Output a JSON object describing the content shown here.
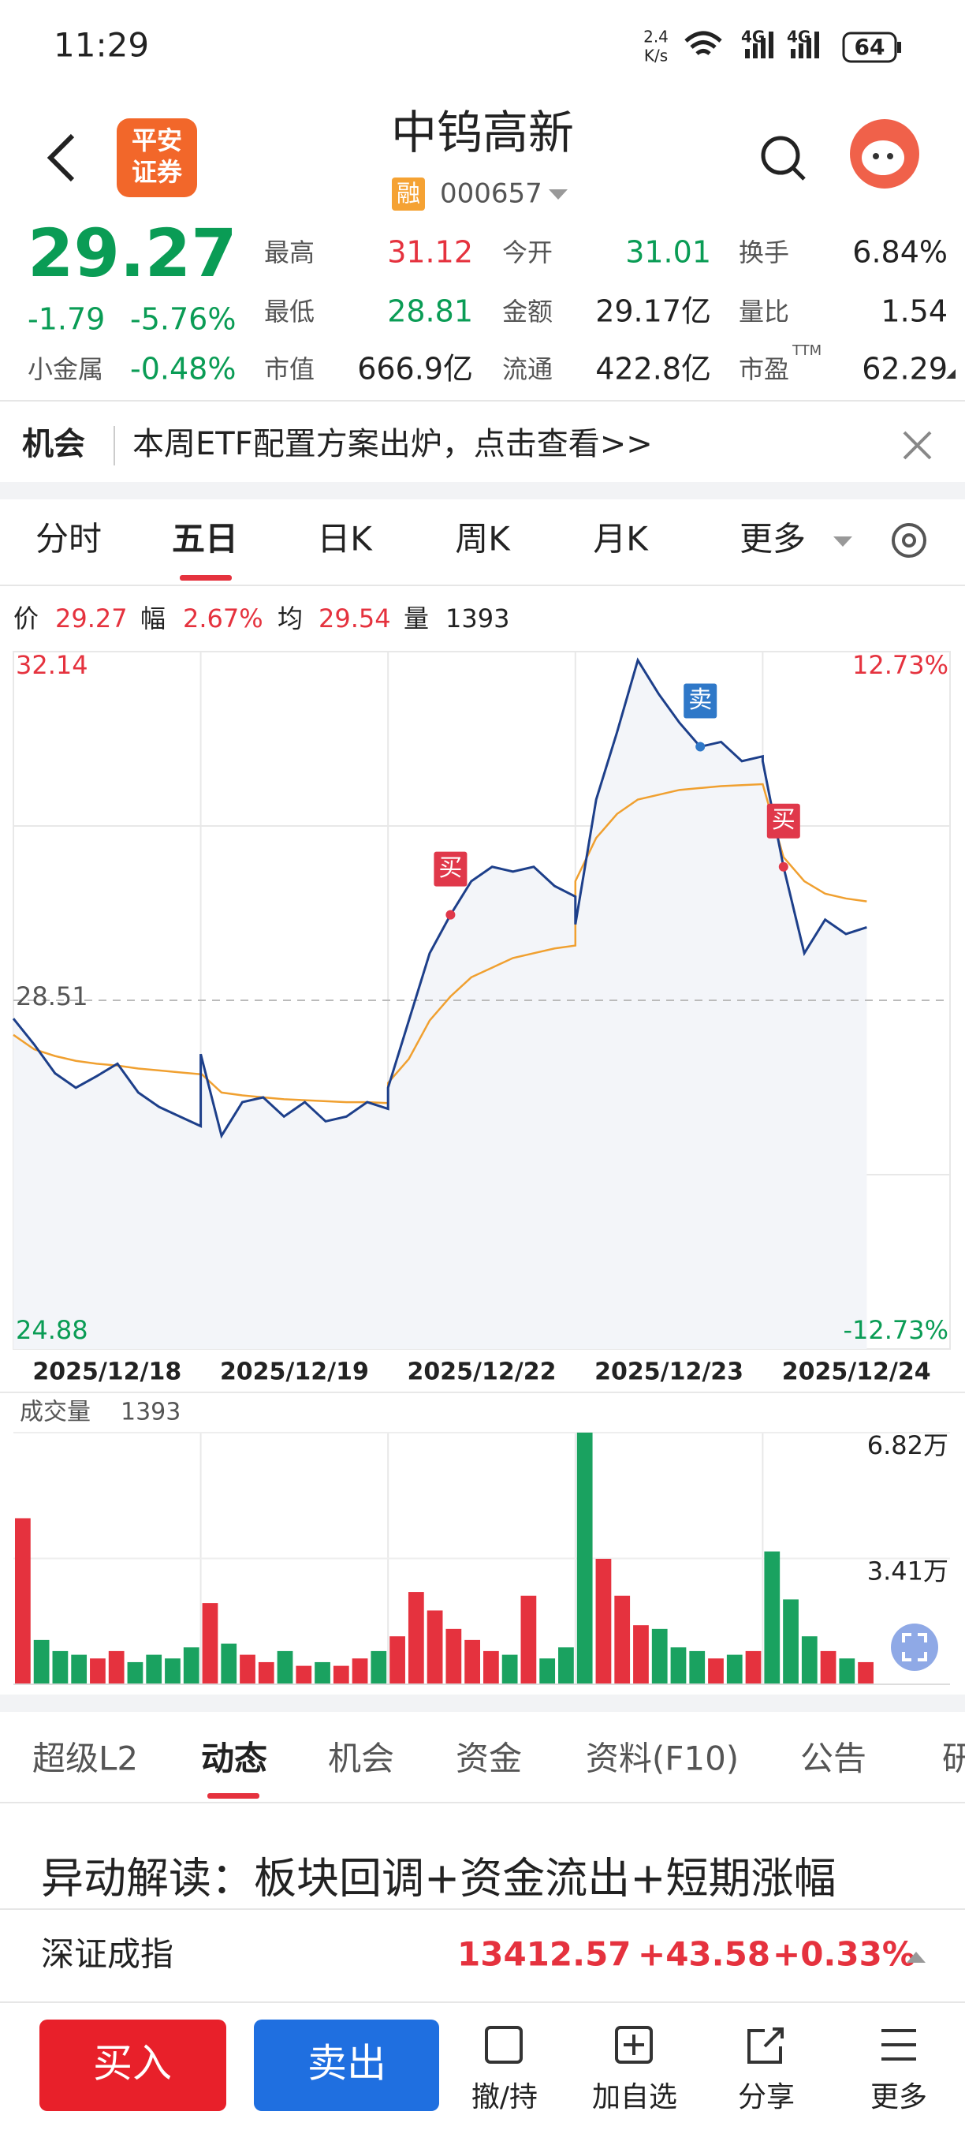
{
  "status": {
    "time": "11:29",
    "speed": "2.4",
    "speed_unit": "K/s",
    "net1": "4G",
    "net2": "4G",
    "battery": "64"
  },
  "header": {
    "broker_top": "平安",
    "broker_bottom": "证券",
    "title": "中钨高新",
    "badge": "融",
    "code": "000657"
  },
  "quote": {
    "price": "29.27",
    "change": "-1.79",
    "change_pct": "-5.76%",
    "sector": "小金属",
    "sector_pct": "-0.48%",
    "stats": [
      {
        "label": "最高",
        "value": "31.12"
      },
      {
        "label": "今开",
        "value": "31.01"
      },
      {
        "label": "换手",
        "value": "6.84%"
      },
      {
        "label": "最低",
        "value": "28.81"
      },
      {
        "label": "金额",
        "value": "29.17亿"
      },
      {
        "label": "量比",
        "value": "1.54"
      },
      {
        "label": "市值",
        "value": "666.9亿"
      },
      {
        "label": "流通",
        "value": "422.8亿"
      },
      {
        "label": "市盈",
        "value": "62.29"
      }
    ],
    "pe_note": "TTM"
  },
  "banner": {
    "tag": "机会",
    "text": "本周ETF配置方案出炉，点击查看>>"
  },
  "chart_tabs": [
    "分时",
    "五日",
    "日K",
    "周K",
    "月K",
    "更多"
  ],
  "info": {
    "price_label": "价",
    "price": "29.27",
    "range_label": "幅",
    "range": "2.67%",
    "avg_label": "均",
    "avg": "29.54",
    "vol_label": "量",
    "vol": "1393"
  },
  "chart": {
    "price_max": 32.14,
    "price_mid": 28.51,
    "price_min": 24.88,
    "pct_max": "12.73%",
    "pct_min": "-12.73%",
    "vol_title": "成交量",
    "vol_now": "1393",
    "vol_ticks": [
      {
        "value": 6.82,
        "label": "6.82万"
      },
      {
        "value": 3.41,
        "label": "3.41万"
      }
    ],
    "days": [
      {
        "date": "2025/12/18",
        "price": [
          28.32,
          28.05,
          27.75,
          27.6,
          27.72,
          27.85,
          27.55,
          27.4,
          27.3,
          27.2
        ],
        "avg": [
          28.15,
          28.0,
          27.93,
          27.88,
          27.85,
          27.83,
          27.8,
          27.78,
          27.76,
          27.74
        ],
        "volume": [
          4.5,
          1.2,
          0.9,
          0.8,
          0.7,
          0.9,
          0.6,
          0.8,
          0.7,
          1.0
        ],
        "marks": []
      },
      {
        "date": "2025/12/19",
        "price": [
          27.95,
          27.1,
          27.45,
          27.5,
          27.3,
          27.45,
          27.25,
          27.3,
          27.45,
          27.38
        ],
        "avg": [
          27.75,
          27.55,
          27.52,
          27.5,
          27.48,
          27.47,
          27.46,
          27.45,
          27.45,
          27.44
        ],
        "volume": [
          2.2,
          1.1,
          0.8,
          0.6,
          0.9,
          0.5,
          0.6,
          0.5,
          0.7,
          0.9
        ],
        "marks": []
      },
      {
        "date": "2025/12/22",
        "price": [
          27.6,
          28.3,
          29.0,
          29.4,
          29.75,
          29.9,
          29.85,
          29.9,
          29.7,
          29.59
        ],
        "avg": [
          27.65,
          27.9,
          28.3,
          28.55,
          28.75,
          28.85,
          28.95,
          29.0,
          29.05,
          29.08
        ],
        "volume": [
          1.3,
          2.5,
          2.0,
          1.5,
          1.2,
          0.9,
          0.8,
          2.4,
          0.7,
          1.0
        ],
        "marks": [
          {
            "label": "买",
            "at": 3
          }
        ]
      },
      {
        "date": "2025/12/23",
        "price": [
          29.3,
          30.6,
          31.3,
          32.05,
          31.7,
          31.4,
          31.15,
          31.2,
          31.0,
          31.05
        ],
        "avg": [
          29.75,
          30.2,
          30.45,
          30.6,
          30.65,
          30.7,
          30.72,
          30.74,
          30.75,
          30.76
        ],
        "volume": [
          6.82,
          3.4,
          2.4,
          1.6,
          1.5,
          1.0,
          0.9,
          0.7,
          0.8,
          0.9
        ],
        "marks": [
          {
            "label": "卖",
            "at": 6
          }
        ]
      },
      {
        "date": "2025/12/24",
        "price": [
          31.0,
          29.9,
          29.0,
          29.35,
          29.2,
          29.27,
          null,
          null,
          null,
          null
        ],
        "avg": [
          30.76,
          30.0,
          29.75,
          29.62,
          29.57,
          29.54,
          null,
          null,
          null,
          null
        ],
        "volume": [
          3.6,
          2.3,
          1.3,
          0.9,
          0.7,
          0.6,
          null,
          null,
          null,
          null
        ],
        "marks": [
          {
            "label": "买",
            "at": 1
          }
        ]
      }
    ]
  },
  "detail_tabs": [
    "超级L2",
    "动态",
    "机会",
    "资金",
    "资料(F10)",
    "公告",
    "研"
  ],
  "headline": "异动解读：板块回调+资金流出+短期涨幅",
  "index": {
    "name": "深证成指",
    "value": "13412.57",
    "change": "+43.58",
    "change_pct": "+0.33%"
  },
  "bottom": {
    "buy": "买入",
    "sell": "卖出",
    "actions": [
      "撤/持",
      "加自选",
      "分享",
      "更多"
    ]
  }
}
